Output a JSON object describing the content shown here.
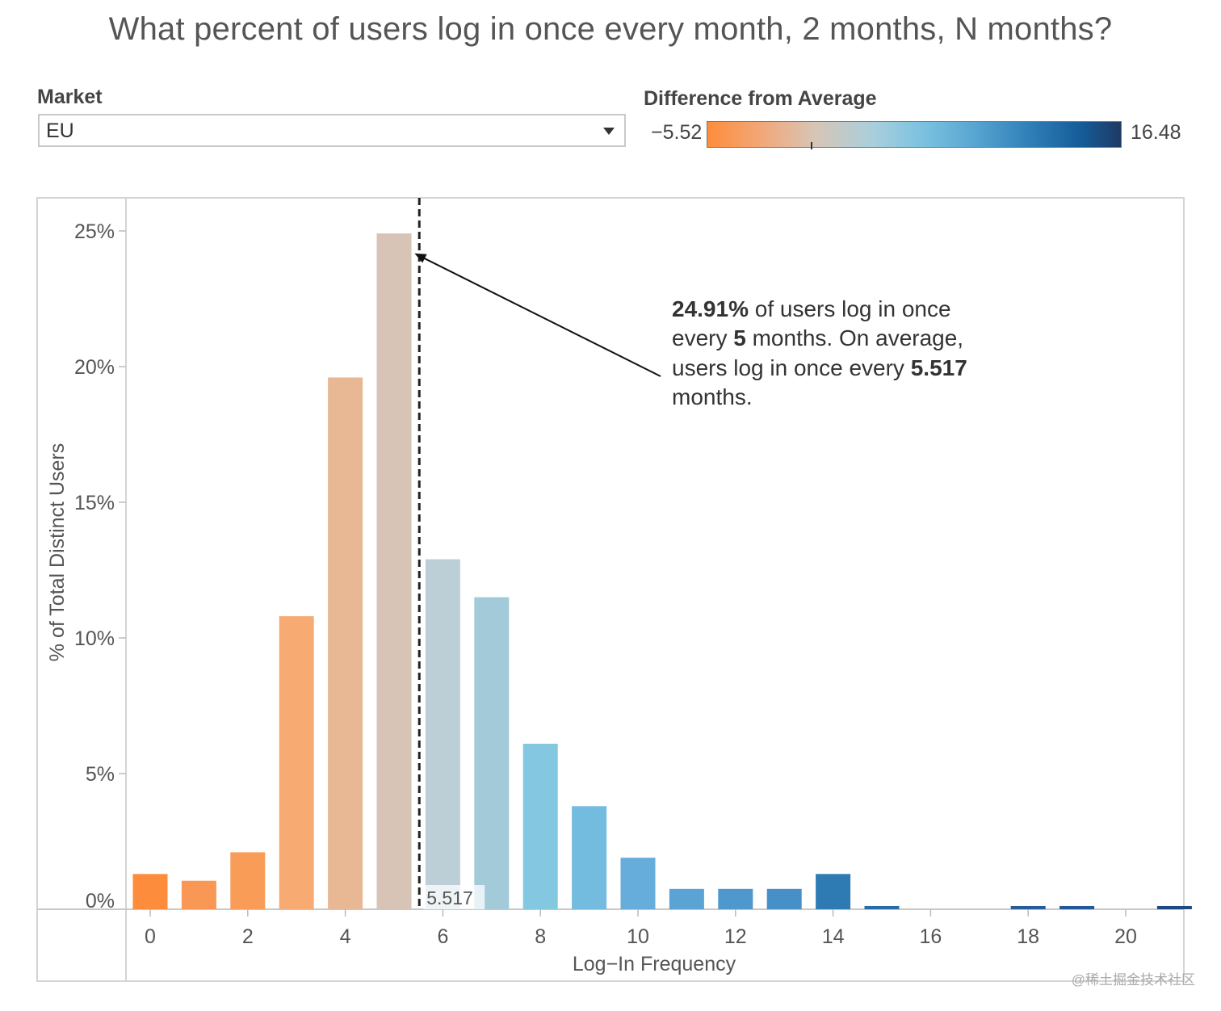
{
  "title": "What percent of users log in once every month, 2 months, N months?",
  "filter": {
    "label": "Market",
    "selected": "EU"
  },
  "legend": {
    "title": "Difference from Average",
    "min_label": "−5.52",
    "max_label": "16.48",
    "min": -5.52,
    "max": 16.48,
    "colors": [
      "#fd8d3c",
      "#d7c5b6",
      "#7cc2e0",
      "#1e3a64"
    ]
  },
  "watermark": "@稀土掘金技术社区",
  "chart_data": {
    "type": "bar",
    "xlabel": "Log−In Frequency",
    "ylabel": "% of Total Distinct Users",
    "xlim": [
      -0.5,
      21
    ],
    "ylim": [
      0,
      26
    ],
    "x_ticks": [
      0,
      2,
      4,
      6,
      8,
      10,
      12,
      14,
      16,
      18,
      20
    ],
    "y_ticks": [
      {
        "value": 0,
        "label": "0%"
      },
      {
        "value": 5,
        "label": "5%"
      },
      {
        "value": 10,
        "label": "10%"
      },
      {
        "value": 15,
        "label": "15%"
      },
      {
        "value": 20,
        "label": "20%"
      },
      {
        "value": 25,
        "label": "25%"
      }
    ],
    "bars": [
      {
        "x": 0,
        "value": 1.3,
        "color": "#fd8d3c"
      },
      {
        "x": 1,
        "value": 1.05,
        "color": "#f99854"
      },
      {
        "x": 2,
        "value": 2.1,
        "color": "#f99c58"
      },
      {
        "x": 3,
        "value": 10.8,
        "color": "#f7ab72"
      },
      {
        "x": 4,
        "value": 19.6,
        "color": "#e8b895"
      },
      {
        "x": 5,
        "value": 24.91,
        "color": "#d8c4b6"
      },
      {
        "x": 6,
        "value": 12.9,
        "color": "#bdcfd6"
      },
      {
        "x": 7,
        "value": 11.5,
        "color": "#a2cad9"
      },
      {
        "x": 8,
        "value": 6.1,
        "color": "#83c8e0"
      },
      {
        "x": 9,
        "value": 3.8,
        "color": "#74bbe0"
      },
      {
        "x": 10,
        "value": 1.9,
        "color": "#67addb"
      },
      {
        "x": 11,
        "value": 0.75,
        "color": "#5aa3d4"
      },
      {
        "x": 12,
        "value": 0.75,
        "color": "#4e98cd"
      },
      {
        "x": 13,
        "value": 0.75,
        "color": "#4790c7"
      },
      {
        "x": 14,
        "value": 1.3,
        "color": "#2e7bb4"
      },
      {
        "x": 15,
        "value": 0.12,
        "color": "#2b6ca8"
      },
      {
        "x": 18,
        "value": 0.12,
        "color": "#245d99"
      },
      {
        "x": 19,
        "value": 0.12,
        "color": "#23589a"
      },
      {
        "x": 21,
        "value": 0.12,
        "color": "#1e4a82"
      }
    ],
    "average_line": {
      "value": 5.517,
      "label": "5.517"
    },
    "annotation": {
      "target": {
        "x": 5.517,
        "y": 24.5
      },
      "lines": [
        [
          {
            "text": "24.91%",
            "bold": true
          },
          {
            "text": " of users log in once",
            "bold": false
          }
        ],
        [
          {
            "text": "every ",
            "bold": false
          },
          {
            "text": "5",
            "bold": true
          },
          {
            "text": " months. On average,",
            "bold": false
          }
        ],
        [
          {
            "text": "users log in once every ",
            "bold": false
          },
          {
            "text": "5.517",
            "bold": true
          }
        ],
        [
          {
            "text": "months.",
            "bold": false
          }
        ]
      ]
    }
  }
}
